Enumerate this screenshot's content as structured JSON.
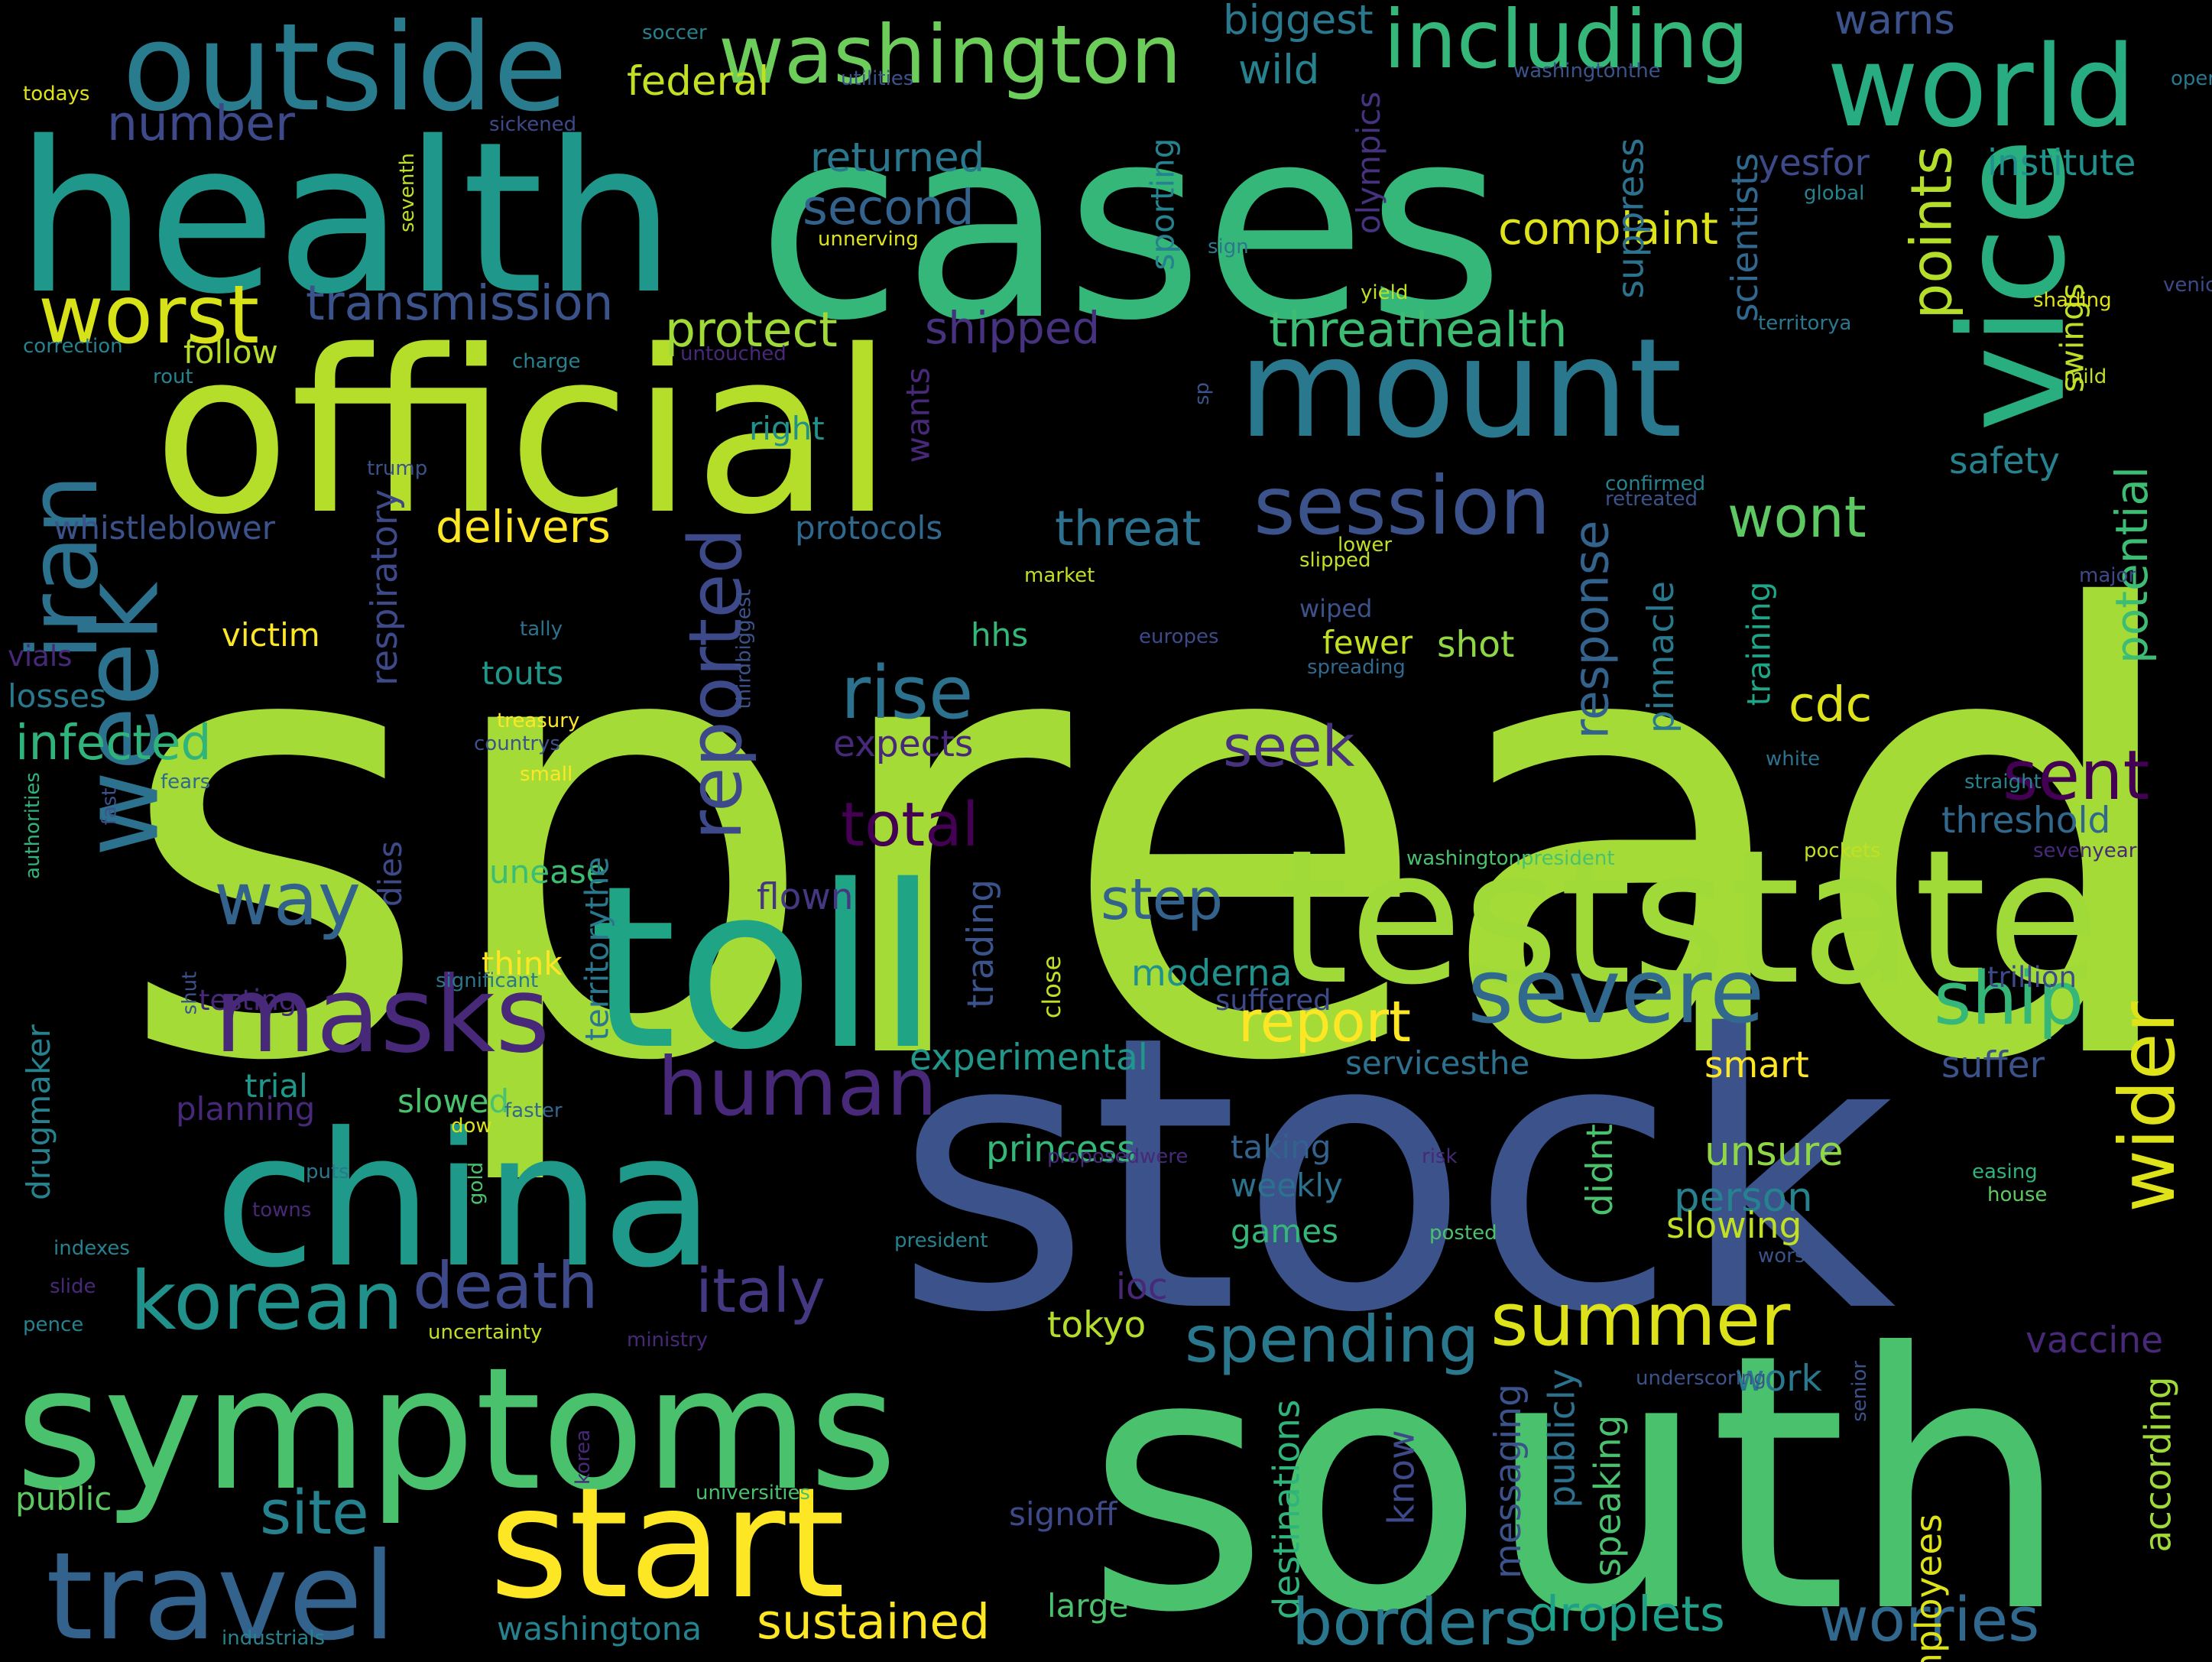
{
  "words": [
    {
      "text": "spread",
      "color": "#a5db36"
    },
    {
      "text": "stock",
      "color": "#3b528b"
    },
    {
      "text": "cases",
      "color": "#35b779"
    },
    {
      "text": "south",
      "color": "#4ac16d"
    },
    {
      "text": "official",
      "color": "#b5de2b"
    },
    {
      "text": "symptoms",
      "color": "#4ac16d"
    },
    {
      "text": "teststate",
      "color": "#a0da39"
    },
    {
      "text": "health",
      "color": "#1f988b"
    },
    {
      "text": "china",
      "color": "#1f9a8a"
    },
    {
      "text": "toll",
      "color": "#20a486"
    },
    {
      "text": "start",
      "color": "#fde725"
    },
    {
      "text": "mount",
      "color": "#2a788e"
    },
    {
      "text": "vice",
      "color": "#29af7f"
    },
    {
      "text": "travel",
      "color": "#33638d"
    },
    {
      "text": "outside",
      "color": "#287c8e"
    },
    {
      "text": "world",
      "color": "#27ad81"
    },
    {
      "text": "week",
      "color": "#2c728e"
    },
    {
      "text": "iran",
      "color": "#2c728e"
    },
    {
      "text": "masks",
      "color": "#482878"
    },
    {
      "text": "severe",
      "color": "#31688e"
    },
    {
      "text": "washington",
      "color": "#6ccd5a"
    },
    {
      "text": "including",
      "color": "#35b779"
    },
    {
      "text": "worst",
      "color": "#d8e219"
    },
    {
      "text": "session",
      "color": "#3b528b"
    },
    {
      "text": "korean",
      "color": "#21918c"
    },
    {
      "text": "human",
      "color": "#482878"
    },
    {
      "text": "summer",
      "color": "#dde318"
    },
    {
      "text": "ship",
      "color": "#35b779"
    },
    {
      "text": "wider",
      "color": "#dde318"
    },
    {
      "text": "rise",
      "color": "#2c728e"
    },
    {
      "text": "reported",
      "color": "#3e4989"
    },
    {
      "text": "death",
      "color": "#3e4989"
    },
    {
      "text": "way",
      "color": "#33638d"
    },
    {
      "text": "sent",
      "color": "#440154"
    },
    {
      "text": "spending",
      "color": "#2a788e"
    },
    {
      "text": "borders",
      "color": "#2a788e"
    },
    {
      "text": "worries",
      "color": "#31688e"
    },
    {
      "text": "site",
      "color": "#26828e"
    },
    {
      "text": "italy",
      "color": "#453781"
    },
    {
      "text": "total",
      "color": "#440154"
    },
    {
      "text": "report",
      "color": "#fde725"
    },
    {
      "text": "step",
      "color": "#33638d"
    },
    {
      "text": "wont",
      "color": "#5ec962"
    },
    {
      "text": "points",
      "color": "#b5de2b"
    },
    {
      "text": "threathealth",
      "color": "#3dbc74"
    },
    {
      "text": "transmission",
      "color": "#3b528b"
    },
    {
      "text": "number",
      "color": "#3e4989"
    },
    {
      "text": "protect",
      "color": "#a0da39"
    },
    {
      "text": "shipped",
      "color": "#46327e"
    },
    {
      "text": "sustained",
      "color": "#fde725"
    },
    {
      "text": "droplets",
      "color": "#1fa088"
    },
    {
      "text": "cdc",
      "color": "#dde318"
    },
    {
      "text": "seek",
      "color": "#46327e"
    },
    {
      "text": "response",
      "color": "#33638d"
    },
    {
      "text": "potential",
      "color": "#3dbc74"
    },
    {
      "text": "infected",
      "color": "#2fb47c"
    },
    {
      "text": "delivers",
      "color": "#fde725"
    },
    {
      "text": "threat",
      "color": "#2c728e"
    },
    {
      "text": "complaint",
      "color": "#dde318"
    },
    {
      "text": "second",
      "color": "#33638d"
    },
    {
      "text": "returned",
      "color": "#2a788e"
    },
    {
      "text": "federal",
      "color": "#c2df23"
    },
    {
      "text": "biggest",
      "color": "#2a788e"
    },
    {
      "text": "wild",
      "color": "#26828e"
    },
    {
      "text": "warns",
      "color": "#3b528b"
    },
    {
      "text": "institute",
      "color": "#21918c"
    },
    {
      "text": "yesfor",
      "color": "#3e4989"
    },
    {
      "text": "suppress",
      "color": "#2c728e"
    },
    {
      "text": "scientists",
      "color": "#31688e"
    },
    {
      "text": "training",
      "color": "#20a486"
    },
    {
      "text": "swings",
      "color": "#bddf26"
    },
    {
      "text": "safety",
      "color": "#26828e"
    },
    {
      "text": "threshold",
      "color": "#31688e"
    },
    {
      "text": "experimental",
      "color": "#1f988b"
    },
    {
      "text": "moderna",
      "color": "#21918c"
    },
    {
      "text": "princess",
      "color": "#35b779"
    },
    {
      "text": "unsure",
      "color": "#8fd744"
    },
    {
      "text": "person",
      "color": "#26828e"
    },
    {
      "text": "slowing",
      "color": "#c2df23"
    },
    {
      "text": "smart",
      "color": "#fde725"
    },
    {
      "text": "suffer",
      "color": "#3b528b"
    },
    {
      "text": "vaccine",
      "color": "#482878"
    },
    {
      "text": "work",
      "color": "#2a788e"
    },
    {
      "text": "according",
      "color": "#a0da39"
    },
    {
      "text": "employees",
      "color": "#dde318"
    },
    {
      "text": "publicly",
      "color": "#2c728e"
    },
    {
      "text": "speaking",
      "color": "#4ac16d"
    },
    {
      "text": "messaging",
      "color": "#3b528b"
    },
    {
      "text": "know",
      "color": "#3e4989"
    },
    {
      "text": "destinations",
      "color": "#2fb47c"
    },
    {
      "text": "tokyo",
      "color": "#b5de2b"
    },
    {
      "text": "ioc",
      "color": "#482878"
    },
    {
      "text": "games",
      "color": "#35b779"
    },
    {
      "text": "weekly",
      "color": "#2c728e"
    },
    {
      "text": "taking",
      "color": "#33638d"
    },
    {
      "text": "didnt",
      "color": "#4ac16d"
    },
    {
      "text": "servicesthe",
      "color": "#2c728e"
    },
    {
      "text": "trillion",
      "color": "#3e4989"
    },
    {
      "text": "suffered",
      "color": "#3e4989"
    },
    {
      "text": "trading",
      "color": "#3b528b"
    },
    {
      "text": "close",
      "color": "#c2df23"
    },
    {
      "text": "flown",
      "color": "#453781"
    },
    {
      "text": "expects",
      "color": "#482878"
    },
    {
      "text": "fewer",
      "color": "#c2df23"
    },
    {
      "text": "shot",
      "color": "#8fd744"
    },
    {
      "text": "pinnacle",
      "color": "#2a788e"
    },
    {
      "text": "touts",
      "color": "#1f988b"
    },
    {
      "text": "hhs",
      "color": "#35b779"
    },
    {
      "text": "wiped",
      "color": "#3b528b"
    },
    {
      "text": "europes",
      "color": "#3e4989"
    },
    {
      "text": "spreading",
      "color": "#31688e"
    },
    {
      "text": "respiratory",
      "color": "#3e4989"
    },
    {
      "text": "victim",
      "color": "#fde725"
    },
    {
      "text": "vials",
      "color": "#482878"
    },
    {
      "text": "losses",
      "color": "#2a788e"
    },
    {
      "text": "whistleblower",
      "color": "#3b528b"
    },
    {
      "text": "protocols",
      "color": "#31688e"
    },
    {
      "text": "right",
      "color": "#21918c"
    },
    {
      "text": "wants",
      "color": "#482878"
    },
    {
      "text": "sporting",
      "color": "#26828e"
    },
    {
      "text": "olympics",
      "color": "#46327e"
    },
    {
      "text": "follow",
      "color": "#b5de2b"
    },
    {
      "text": "drugmaker",
      "color": "#26828e"
    },
    {
      "text": "dies",
      "color": "#3e4989"
    },
    {
      "text": "unease",
      "color": "#3dbc74"
    },
    {
      "text": "think",
      "color": "#fde725"
    },
    {
      "text": "testing",
      "color": "#482878"
    },
    {
      "text": "trial",
      "color": "#1f988b"
    },
    {
      "text": "planning",
      "color": "#482878"
    },
    {
      "text": "slowed",
      "color": "#4ac16d"
    },
    {
      "text": "territorythe",
      "color": "#2a788e"
    },
    {
      "text": "washingtona",
      "color": "#26828e"
    },
    {
      "text": "large",
      "color": "#4ac16d"
    },
    {
      "text": "signoff",
      "color": "#3e4989"
    },
    {
      "text": "public",
      "color": "#5ec962"
    },
    {
      "text": "market",
      "color": "#c2df23"
    },
    {
      "text": "slipped",
      "color": "#c2df23"
    },
    {
      "text": "lower",
      "color": "#c2df23"
    },
    {
      "text": "retreated",
      "color": "#3b528b"
    },
    {
      "text": "confirmed",
      "color": "#26828e"
    },
    {
      "text": "sp",
      "color": "#3b528b"
    },
    {
      "text": "major",
      "color": "#3e4989"
    },
    {
      "text": "mild",
      "color": "#bddf26"
    },
    {
      "text": "shading",
      "color": "#dde318"
    },
    {
      "text": "venice",
      "color": "#3e4989"
    },
    {
      "text": "territorya",
      "color": "#2a788e"
    },
    {
      "text": "yield",
      "color": "#bddf26"
    },
    {
      "text": "sign",
      "color": "#2a788e"
    },
    {
      "text": "global",
      "color": "#26828e"
    },
    {
      "text": "open",
      "color": "#2a788e"
    },
    {
      "text": "washingtonthe",
      "color": "#3b528b"
    },
    {
      "text": "soccer",
      "color": "#26828e"
    },
    {
      "text": "utilities",
      "color": "#3b528b"
    },
    {
      "text": "unnerving",
      "color": "#dde318"
    },
    {
      "text": "sickened",
      "color": "#3e4989"
    },
    {
      "text": "seventh",
      "color": "#bddf26"
    },
    {
      "text": "todays",
      "color": "#dde318"
    },
    {
      "text": "correction",
      "color": "#26828e"
    },
    {
      "text": "rout",
      "color": "#26828e"
    },
    {
      "text": "charge",
      "color": "#26828e"
    },
    {
      "text": "untouched",
      "color": "#482878"
    },
    {
      "text": "trump",
      "color": "#3b528b"
    },
    {
      "text": "tally",
      "color": "#2c728e"
    },
    {
      "text": "thirdbiggest",
      "color": "#3b528b"
    },
    {
      "text": "treasury",
      "color": "#fde725"
    },
    {
      "text": "countrys",
      "color": "#3b528b"
    },
    {
      "text": "small",
      "color": "#fde725"
    },
    {
      "text": "fears",
      "color": "#31688e"
    },
    {
      "text": "fast",
      "color": "#3b528b"
    },
    {
      "text": "authorities",
      "color": "#2fb47c"
    },
    {
      "text": "significant",
      "color": "#2a788e"
    },
    {
      "text": "shut",
      "color": "#3b528b"
    },
    {
      "text": "faster",
      "color": "#31688e"
    },
    {
      "text": "dow",
      "color": "#dde318"
    },
    {
      "text": "puts",
      "color": "#2a788e"
    },
    {
      "text": "gold",
      "color": "#4ac16d"
    },
    {
      "text": "towns",
      "color": "#482878"
    },
    {
      "text": "indexes",
      "color": "#26828e"
    },
    {
      "text": "slide",
      "color": "#482878"
    },
    {
      "text": "pence",
      "color": "#26828e"
    },
    {
      "text": "uncertainty",
      "color": "#c2df23"
    },
    {
      "text": "ministry",
      "color": "#482878"
    },
    {
      "text": "universities",
      "color": "#4ac16d"
    },
    {
      "text": "korea",
      "color": "#482878"
    },
    {
      "text": "industrials",
      "color": "#26828e"
    },
    {
      "text": "president",
      "color": "#26828e"
    },
    {
      "text": "proposedwere",
      "color": "#482878"
    },
    {
      "text": "risk",
      "color": "#482878"
    },
    {
      "text": "posted",
      "color": "#4ac16d"
    },
    {
      "text": "worsthit",
      "color": "#3b528b"
    },
    {
      "text": "underscoring",
      "color": "#3b528b"
    },
    {
      "text": "senior",
      "color": "#3b528b"
    },
    {
      "text": "washingtonpresident",
      "color": "#4ac16d"
    },
    {
      "text": "pockets",
      "color": "#c2df23"
    },
    {
      "text": "sevenyear",
      "color": "#482878"
    },
    {
      "text": "straight",
      "color": "#26828e"
    },
    {
      "text": "white",
      "color": "#2c728e"
    },
    {
      "text": "easing",
      "color": "#2fb47c"
    },
    {
      "text": "house",
      "color": "#5ec962"
    }
  ]
}
